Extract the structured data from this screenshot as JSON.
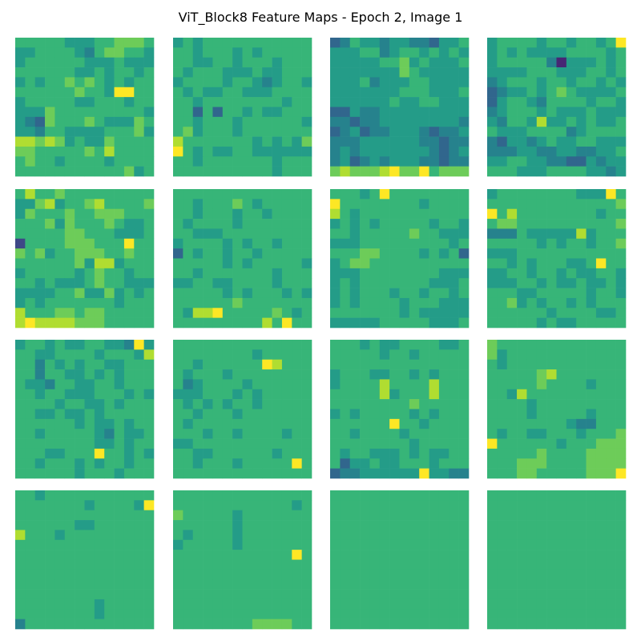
{
  "chart_data": {
    "type": "heatmap",
    "title": "ViT_Block8 Feature Maps - Epoch 2, Image 1",
    "colormap": "viridis",
    "layout": {
      "rows": 4,
      "cols": 4
    },
    "cell_grid": {
      "rows": 14,
      "cols": 14
    },
    "axes_visible": false,
    "panels": [
      {
        "rows": [
          "66666555667776",
          "55666654677665",
          "56666665556555",
          "66666655656656",
          "56566767656566",
          "66666676659966",
          "56666655666566",
          "55576666666665",
          "54376667655576",
          "55466555566675",
          "88787565576666",
          "77666667686666",
          "67665666656666",
          "66666666666756"
        ]
      },
      {
        "rows": [
          "56566666666666",
          "66566656566666",
          "66556656665666",
          "65666555655666",
          "56666566545665",
          "65655665556666",
          "66566666666566",
          "66363665655666",
          "66566656666665",
          "67566656666666",
          "86666666565657",
          "96565566555555",
          "66566666665666",
          "66666666665666"
        ]
      },
      {
        "rows": [
          "34655455443556",
          "55566456656565",
          "55555667565556",
          "55555557655555",
          "55564555665555",
          "55555556665556",
          "55555565566555",
          "33544555555555",
          "44344555555554",
          "34534455543445",
          "44455555544344",
          "45455555554345",
          "45345455544344",
          "78777897796777"
        ]
      },
      {
        "rows": [
          "56666566566569",
          "56565555666656",
          "56666641555656",
          "55556665556656",
          "45666566566565",
          "34556567655556",
          "35665466665665",
          "45666565556555",
          "54665855656556",
          "65556666456666",
          "43554565566555",
          "44455445544556",
          "55665544335455",
          "66655566665545"
        ]
      },
      {
        "rows": [
          "68667666666666",
          "55785667866667",
          "57666766777666",
          "66675766676556",
          "66666776665556",
          "26666777666966",
          "76756677766766",
          "66666675885666",
          "56666656766566",
          "66565556766555",
          "55556675575656",
          "56566666665666",
          "86667767766666",
          "89888877766666"
        ]
      },
      {
        "rows": [
          "66666666666666",
          "66566676566666",
          "66566656656666",
          "65666656666666",
          "66555666666666",
          "56666565665666",
          "36566566566666",
          "66666565666665",
          "66566666665666",
          "55665566665666",
          "66666565666565",
          "66666676666666",
          "65889666667656",
          "66666666686966"
        ]
      },
      {
        "rows": [
          "66656966666666",
          "96666666656666",
          "86566666666666",
          "56565666665665",
          "66566666766555",
          "55566666666656",
          "66677666656563",
          "56776666666666",
          "55566666666555",
          "56566666665556",
          "56566656656656",
          "56566665666555",
          "66666665655555",
          "55555666665556"
        ]
      },
      {
        "rows": [
          "56666666655596",
          "66666666666667",
          "96866666666566",
          "67766666666667",
          "44465555585666",
          "66666565665667",
          "55566666666666",
          "66565666556966",
          "55665665655665",
          "55566565565565",
          "66655666665665",
          "66756566565666",
          "66666656666556",
          "66666565566666"
        ]
      },
      {
        "rows": [
          "56656556655495",
          "66556666566658",
          "66465656655666",
          "66466556565666",
          "65546655665666",
          "66566555666565",
          "66665665565666",
          "66556556566666",
          "66666656556566",
          "66566666546556",
          "66666666556566",
          "66655666966565",
          "66566656566566",
          "66666656665666"
        ]
      },
      {
        "rows": [
          "66666666666666",
          "66666666566666",
          "66566666698666",
          "65666566666666",
          "64566665666666",
          "55566656566666",
          "65656566566666",
          "66566656666666",
          "65666666666666",
          "66656656666566",
          "55666666666666",
          "66556666665666",
          "66566656666696",
          "66666666666666"
        ]
      },
      {
        "rows": [
          "66656556666556",
          "66666566566666",
          "66666666666666",
          "56665566565666",
          "56666866668666",
          "66666856668666",
          "66666666766666",
          "56566666565666",
          "66666696656666",
          "66566665666666",
          "66666666566666",
          "65665556565566",
          "63556556665666",
          "34455555595544"
        ]
      },
      {
        "rows": [
          "76666666666666",
          "75666666666666",
          "65666666666666",
          "66666786666666",
          "66666766665666",
          "66586666666666",
          "66665666666666",
          "66665666665666",
          "66666666544666",
          "65665566656667",
          "96666665666777",
          "66666766667777",
          "66677766667777",
          "66677666667779"
        ]
      },
      {
        "rows": [
          "66566666666666",
          "66666665666659",
          "66666666666666",
          "66666655666666",
          "86665666666666",
          "66666666666666",
          "66666666666666",
          "66666666666666",
          "66666666666666",
          "66666666666666",
          "66666666666666",
          "66666666566666",
          "66666666566666",
          "46666666666666"
        ]
      },
      {
        "rows": [
          "66666666666666",
          "66666666666656",
          "76666656666666",
          "66666656666666",
          "65666656666666",
          "56666656666666",
          "66666666666696",
          "66666666666666",
          "66666666666666",
          "66666666666666",
          "66666666666666",
          "66666666666666",
          "66666666666666",
          "66666666777766"
        ]
      },
      {
        "rows": [
          "66666666666666",
          "66666666666666",
          "66666666666666",
          "66666666666666",
          "66666666666666",
          "66666666666666",
          "66666666666666",
          "66666666666666",
          "66666666666666",
          "66666666666666",
          "66666666666666",
          "66666666666666",
          "66666666666666",
          "66666666666666"
        ]
      },
      {
        "rows": [
          "66666666666666",
          "66666666666666",
          "66666666666666",
          "66666666666666",
          "66666666666666",
          "66666666666666",
          "66666666666666",
          "66666666666666",
          "66666666666666",
          "66666666666666",
          "66666666666666",
          "66666666666666",
          "66666666666666",
          "66666666666666"
        ]
      }
    ]
  }
}
